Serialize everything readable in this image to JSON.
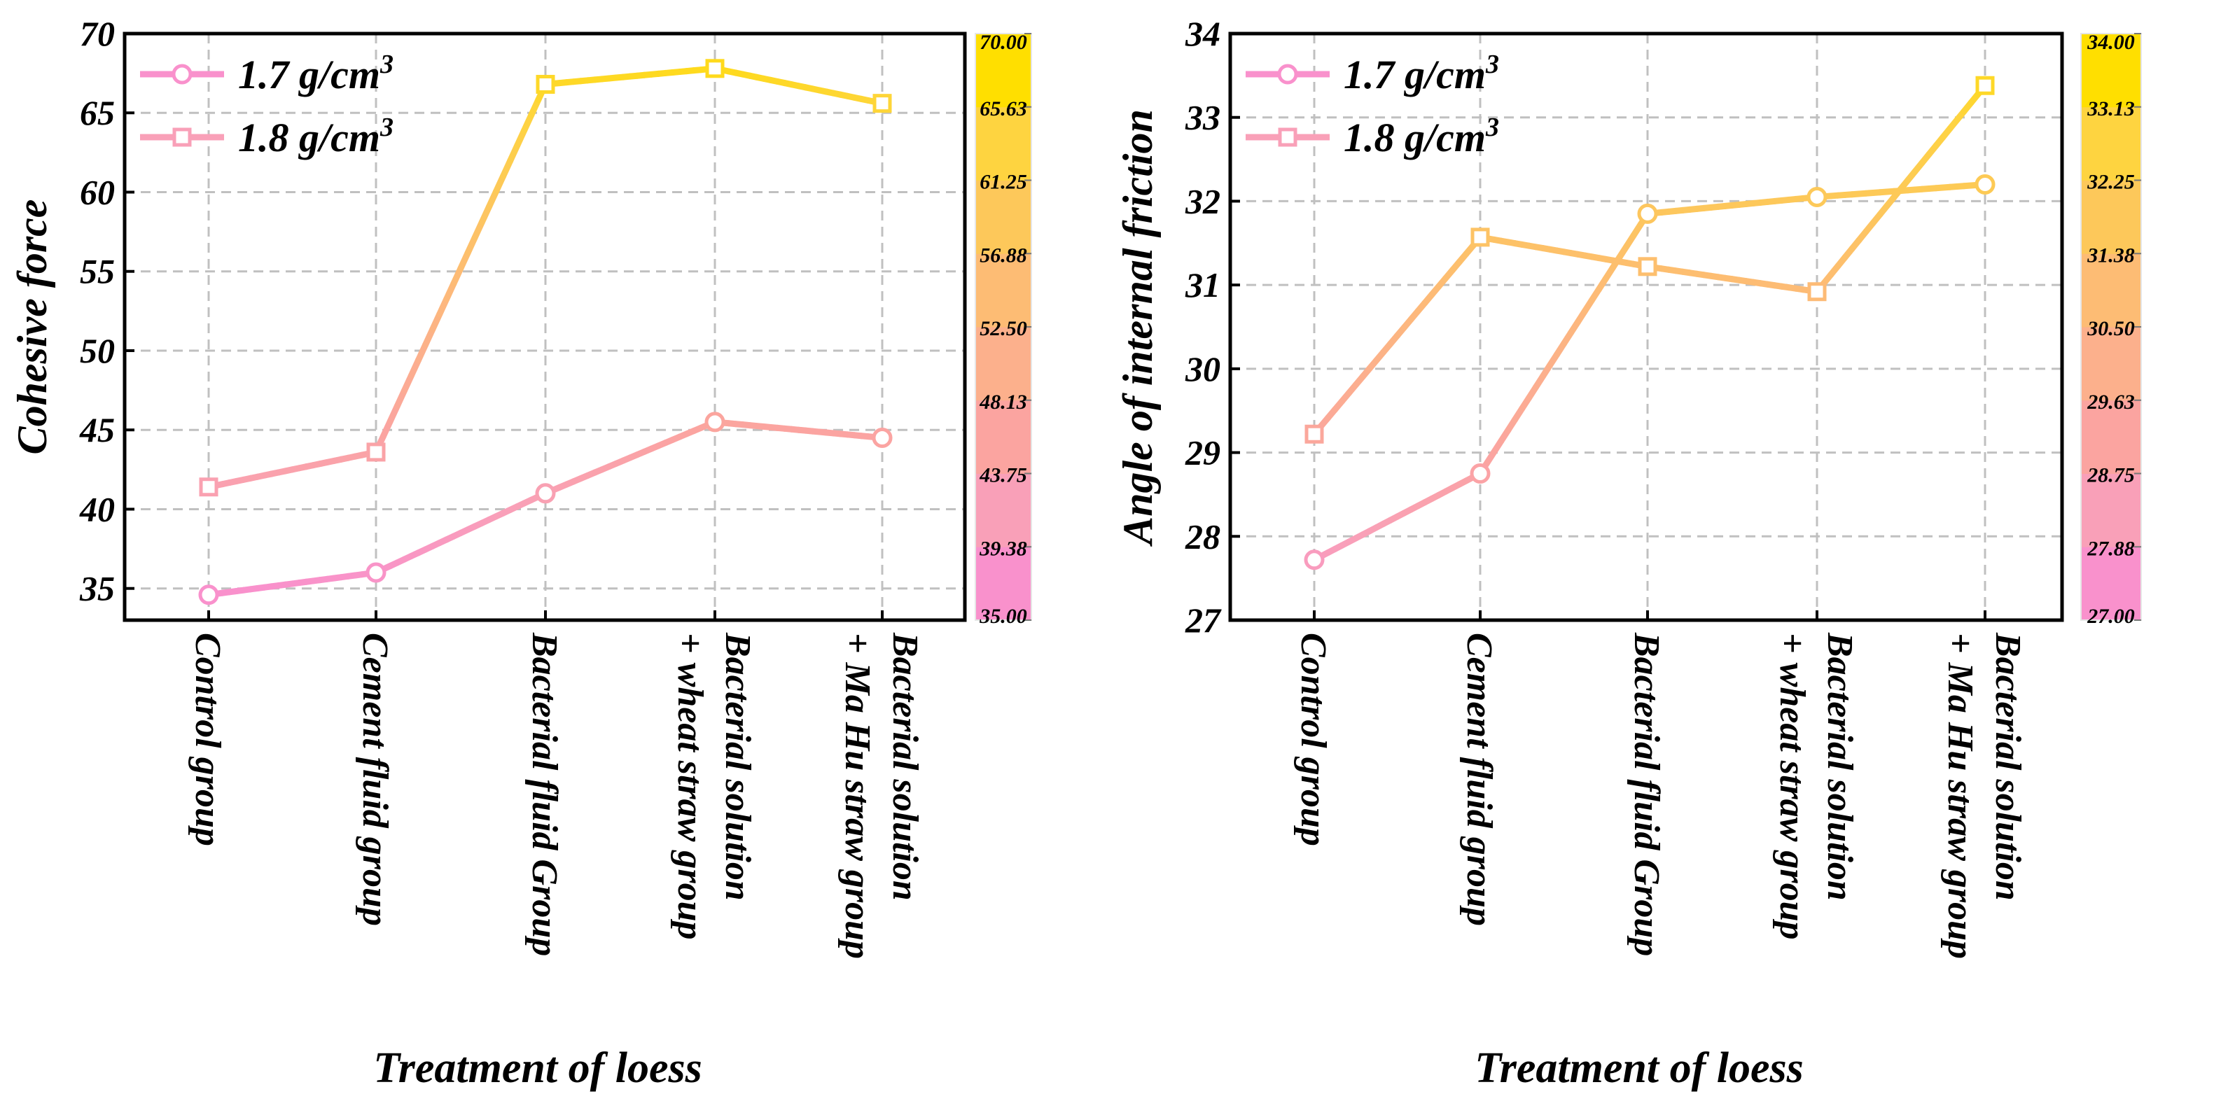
{
  "chart_data": [
    {
      "type": "line",
      "ylabel": "Cohesive force",
      "xlabel": "Treatment of loess",
      "ylim": [
        33,
        70
      ],
      "yticks": [
        35,
        40,
        45,
        50,
        55,
        60,
        65,
        70
      ],
      "grid": true,
      "legend_position": "top-left",
      "categories": [
        [
          "Control group"
        ],
        [
          "Cement fluid group"
        ],
        [
          "Bacterial fluid Group"
        ],
        [
          "Bacterial solution",
          "+ wheat straw group"
        ],
        [
          "Bacterial solution",
          "+ Ma Hu straw group"
        ]
      ],
      "series": [
        {
          "name": "1.7 g/cm",
          "superscript": "3",
          "marker": "circle",
          "values": [
            34.6,
            36.0,
            41.0,
            45.5,
            44.5
          ]
        },
        {
          "name": "1.8 g/cm",
          "superscript": "3",
          "marker": "square",
          "values": [
            41.4,
            43.6,
            66.8,
            67.8,
            65.6
          ]
        }
      ],
      "colorbar": {
        "min": 35,
        "max": 70,
        "ticks": [
          "70.00",
          "65.63",
          "61.25",
          "56.88",
          "52.50",
          "48.13",
          "43.75",
          "39.38",
          "35.00"
        ]
      }
    },
    {
      "type": "line",
      "ylabel": "Angle of internal friction",
      "xlabel": "Treatment of loess",
      "ylim": [
        27,
        34
      ],
      "yticks": [
        27,
        28,
        29,
        30,
        31,
        32,
        33,
        34
      ],
      "grid": true,
      "legend_position": "top-left",
      "categories": [
        [
          "Control group"
        ],
        [
          "Cement fluid group"
        ],
        [
          "Bacterial fluid Group"
        ],
        [
          "Bacterial solution",
          "+ wheat straw group"
        ],
        [
          "Bacterial solution",
          "+ Ma Hu straw group"
        ]
      ],
      "series": [
        {
          "name": "1.7 g/cm",
          "superscript": "3",
          "marker": "circle",
          "values": [
            27.72,
            28.75,
            31.85,
            32.05,
            32.2
          ]
        },
        {
          "name": "1.8 g/cm",
          "superscript": "3",
          "marker": "square",
          "values": [
            29.22,
            31.57,
            31.22,
            30.92,
            33.38
          ]
        }
      ],
      "colorbar": {
        "min": 27,
        "max": 34,
        "ticks": [
          "34.00",
          "33.13",
          "32.25",
          "31.38",
          "30.50",
          "29.63",
          "28.75",
          "27.88",
          "27.00"
        ]
      }
    }
  ],
  "colors": {
    "palette": [
      "#f991cc",
      "#f9a0b8",
      "#fba4a0",
      "#fcb08c",
      "#fdbc74",
      "#fdc85a",
      "#fed440",
      "#ffdf00"
    ],
    "frame": "#000000",
    "grid": "#c0c0c0"
  }
}
